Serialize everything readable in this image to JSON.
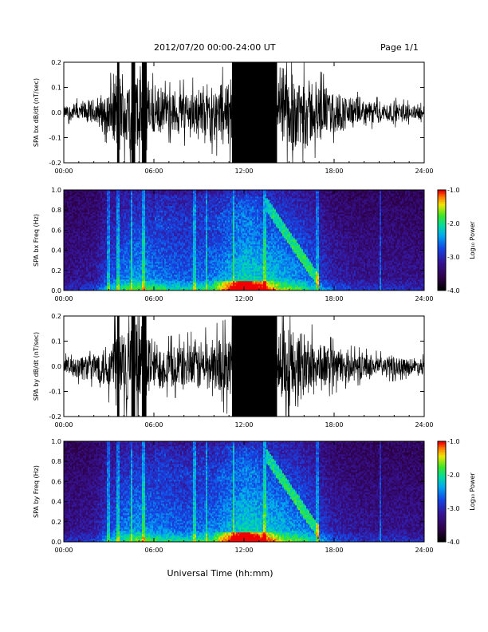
{
  "header": {
    "title": "2012/07/20  00:00-24:00 UT",
    "page": "Page 1/1"
  },
  "chart_data": [
    {
      "type": "line",
      "ylabel": "SPA bx dB/dt (nT/sec)",
      "xlim": [
        "00:00",
        "24:00"
      ],
      "x_ticks": [
        "00:00",
        "06:00",
        "12:00",
        "18:00",
        "24:00"
      ],
      "ylim": [
        -0.2,
        0.2
      ],
      "y_ticks": [
        "-0.2",
        "-0.1",
        "0.0",
        "0.1",
        "0.2"
      ],
      "envelope": {
        "hours": [
          0,
          1,
          2,
          3,
          3.5,
          4,
          5,
          5.5,
          6,
          7,
          8,
          9,
          10,
          11,
          11.2,
          12,
          13,
          14,
          15,
          16,
          17,
          18,
          19,
          20,
          21,
          22,
          23,
          24
        ],
        "amplitude": [
          0.03,
          0.05,
          0.06,
          0.11,
          0.2,
          0.2,
          0.2,
          0.2,
          0.12,
          0.1,
          0.11,
          0.12,
          0.14,
          0.16,
          0.2,
          0.2,
          0.2,
          0.2,
          0.2,
          0.18,
          0.14,
          0.1,
          0.08,
          0.06,
          0.05,
          0.05,
          0.04,
          0.03
        ]
      }
    },
    {
      "type": "heatmap",
      "ylabel": "SPA bx Freq (Hz)",
      "xlim": [
        "00:00",
        "24:00"
      ],
      "x_ticks": [
        "00:00",
        "06:00",
        "12:00",
        "18:00",
        "24:00"
      ],
      "ylim": [
        0.0,
        1.0
      ],
      "y_ticks": [
        "0.0",
        "0.2",
        "0.4",
        "0.6",
        "0.8",
        "1.0"
      ],
      "colorbar": {
        "label": "Log₁₀ Power",
        "range": [
          -4.0,
          -1.0
        ],
        "ticks": [
          "-1.0",
          "-2.0",
          "-3.0",
          "-4.0"
        ]
      }
    },
    {
      "type": "line",
      "ylabel": "SPA by dB/dt (nT/sec)",
      "xlim": [
        "00:00",
        "24:00"
      ],
      "x_ticks": [
        "00:00",
        "06:00",
        "12:00",
        "18:00",
        "24:00"
      ],
      "ylim": [
        -0.2,
        0.2
      ],
      "y_ticks": [
        "-0.2",
        "-0.1",
        "0.0",
        "0.1",
        "0.2"
      ],
      "envelope": {
        "hours": [
          0,
          1,
          2,
          3,
          3.5,
          4,
          5,
          5.5,
          6,
          7,
          8,
          9,
          10,
          11,
          11.2,
          12,
          13,
          14,
          15,
          16,
          17,
          18,
          19,
          20,
          21,
          22,
          23,
          24
        ],
        "amplitude": [
          0.04,
          0.06,
          0.07,
          0.12,
          0.2,
          0.2,
          0.2,
          0.2,
          0.12,
          0.1,
          0.11,
          0.12,
          0.14,
          0.16,
          0.2,
          0.2,
          0.2,
          0.2,
          0.2,
          0.16,
          0.12,
          0.09,
          0.07,
          0.06,
          0.05,
          0.05,
          0.04,
          0.04
        ]
      }
    },
    {
      "type": "heatmap",
      "ylabel": "SPA by Freq (Hz)",
      "xlim": [
        "00:00",
        "24:00"
      ],
      "x_ticks": [
        "00:00",
        "06:00",
        "12:00",
        "18:00",
        "24:00"
      ],
      "ylim": [
        0.0,
        1.0
      ],
      "y_ticks": [
        "0.0",
        "0.2",
        "0.4",
        "0.6",
        "0.8",
        "1.0"
      ],
      "colorbar": {
        "label": "Log₁₀ Power",
        "range": [
          -4.0,
          -1.0
        ],
        "ticks": [
          "-1.0",
          "-2.0",
          "-3.0",
          "-4.0"
        ]
      }
    }
  ],
  "xlabel": "Universal Time (hh:mm)"
}
